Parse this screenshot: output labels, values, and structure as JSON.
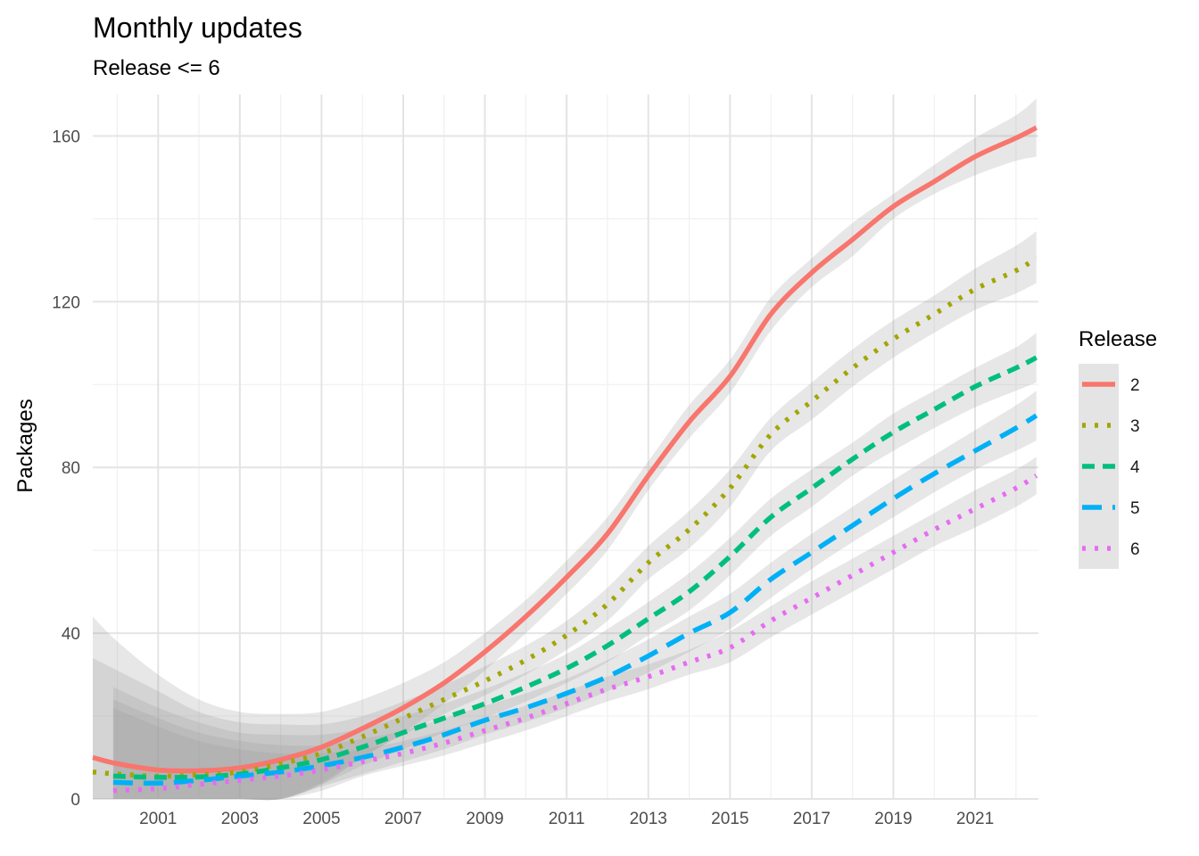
{
  "chart_data": {
    "type": "line",
    "title": "Monthly updates",
    "subtitle": "Release <= 6",
    "xlabel": "",
    "ylabel": "Packages",
    "xlim": [
      1999.4,
      2022.55
    ],
    "ylim": [
      0,
      170
    ],
    "x_ticks": [
      2001,
      2003,
      2005,
      2007,
      2009,
      2011,
      2013,
      2015,
      2017,
      2019,
      2021
    ],
    "y_ticks": [
      0,
      40,
      80,
      120,
      160
    ],
    "grid": true,
    "legend": {
      "title": "Release",
      "position": "right"
    },
    "series": [
      {
        "name": "2",
        "color": "#F8766D",
        "dash": "solid",
        "x": [
          1999.4,
          2000,
          2001,
          2002,
          2003,
          2004,
          2005,
          2006,
          2007,
          2008,
          2009,
          2010,
          2011,
          2012,
          2013,
          2014,
          2015,
          2016,
          2017,
          2018,
          2019,
          2020,
          2021,
          2022,
          2022.5
        ],
        "y": [
          10,
          8.5,
          7,
          6.8,
          7.5,
          9.5,
          12.5,
          17,
          22,
          28,
          35.5,
          44,
          53.5,
          64,
          78,
          91,
          102,
          117,
          127,
          135,
          143,
          149,
          155,
          159.5,
          162
        ],
        "band_upper": [
          44,
          38,
          30,
          24,
          21,
          20.5,
          21,
          24,
          28,
          33,
          40,
          48,
          57.5,
          68,
          81.5,
          95,
          106,
          121,
          130.5,
          139,
          146,
          153,
          159.5,
          165,
          169
        ],
        "band_lower": [
          0,
          0,
          0,
          0,
          0,
          0,
          4,
          10,
          16,
          23,
          31,
          40,
          49.5,
          60,
          74.5,
          87,
          98,
          113,
          123.5,
          131,
          140,
          146,
          150.5,
          154,
          155
        ]
      },
      {
        "name": "3",
        "color": "#A3A500",
        "dash": "dotted",
        "x": [
          1999.4,
          2000,
          2001,
          2002,
          2003,
          2004,
          2005,
          2006,
          2007,
          2008,
          2009,
          2010,
          2011,
          2012,
          2013,
          2014,
          2015,
          2016,
          2017,
          2018,
          2019,
          2020,
          2021,
          2022,
          2022.5
        ],
        "y": [
          6.5,
          6,
          5.5,
          5.8,
          6.5,
          8.5,
          11,
          15,
          19.5,
          24,
          28.5,
          33.5,
          39.5,
          47,
          57,
          65,
          75,
          88,
          96,
          104,
          111,
          117,
          123,
          127.5,
          130.5
        ],
        "band_upper": [
          34,
          31,
          26,
          21,
          18.5,
          18,
          18,
          20,
          23.5,
          27.5,
          32,
          37,
          43,
          51,
          61,
          69.5,
          79.5,
          92,
          100.5,
          108.5,
          115.5,
          121.5,
          128,
          133.5,
          137
        ],
        "band_lower": [
          0,
          0,
          0,
          0,
          0,
          0,
          3.5,
          10,
          15.5,
          20.5,
          25,
          30,
          36,
          43,
          53,
          60.5,
          70.5,
          84,
          91.5,
          99.5,
          106.5,
          112.5,
          118,
          122,
          124.5
        ]
      },
      {
        "name": "4",
        "color": "#00BF7D",
        "dash": "dashed",
        "x": [
          1999.9,
          2001,
          2002,
          2003,
          2004,
          2005,
          2006,
          2007,
          2008,
          2009,
          2010,
          2011,
          2012,
          2013,
          2014,
          2015,
          2016,
          2017,
          2018,
          2019,
          2020,
          2021,
          2022,
          2022.5
        ],
        "y": [
          5.5,
          5.2,
          5.3,
          6,
          7.5,
          9.5,
          12.5,
          16,
          19.5,
          23,
          27,
          31.5,
          37,
          43.5,
          50,
          58.5,
          68,
          75,
          82,
          88.5,
          94,
          99.5,
          104,
          106.5
        ],
        "band_upper": [
          27,
          22,
          18.5,
          16,
          15.5,
          15.5,
          17,
          20,
          23,
          26.5,
          30.5,
          35,
          41,
          47.5,
          54.5,
          63,
          72.5,
          79.5,
          86,
          93,
          98.5,
          104,
          109,
          112.5
        ],
        "band_lower": [
          0,
          0,
          0,
          0,
          0,
          3.5,
          8,
          12,
          16,
          19.5,
          23.5,
          28,
          33,
          39.5,
          45.5,
          54,
          63.5,
          70.5,
          78,
          84,
          89.5,
          94.5,
          98.5,
          100.5
        ]
      },
      {
        "name": "5",
        "color": "#00B0F6",
        "dash": "longdash",
        "x": [
          1999.9,
          2001,
          2002,
          2003,
          2004,
          2005,
          2006,
          2007,
          2008,
          2009,
          2010,
          2011,
          2012,
          2013,
          2014,
          2015,
          2016,
          2017,
          2018,
          2019,
          2020,
          2021,
          2022,
          2022.5
        ],
        "y": [
          4,
          3.8,
          4.5,
          5.5,
          6.5,
          8,
          10,
          12.5,
          15.5,
          19,
          22,
          25.5,
          29.5,
          34.5,
          40,
          45,
          53,
          59.5,
          66,
          72.5,
          78.5,
          84,
          89.5,
          92.5
        ],
        "band_upper": [
          24,
          19.5,
          16,
          14,
          13,
          13,
          14.5,
          16.5,
          19.5,
          22.5,
          25.5,
          29,
          33.5,
          38.5,
          44,
          49.5,
          57,
          64,
          70.5,
          77,
          83,
          89,
          95,
          98.5
        ],
        "band_lower": [
          0,
          0,
          0,
          0,
          0,
          3,
          6,
          9,
          12,
          15.5,
          18.5,
          22,
          26,
          30.5,
          35.5,
          41,
          48.5,
          55.5,
          62,
          68,
          74,
          79.5,
          84,
          86.5
        ]
      },
      {
        "name": "6",
        "color": "#E76BF3",
        "dash": "dotted",
        "x": [
          1999.9,
          2001,
          2002,
          2003,
          2004,
          2005,
          2006,
          2007,
          2008,
          2009,
          2010,
          2011,
          2012,
          2013,
          2014,
          2015,
          2016,
          2017,
          2018,
          2019,
          2020,
          2021,
          2022,
          2022.5
        ],
        "y": [
          2,
          2.5,
          3.5,
          4.5,
          5.5,
          7,
          9,
          11,
          13.5,
          16.5,
          19.5,
          23,
          26.5,
          29.5,
          33,
          36.5,
          43,
          48.5,
          54,
          59.5,
          65,
          70,
          75,
          78
        ],
        "band_upper": [
          22,
          17.5,
          14,
          12,
          11,
          11,
          12,
          14,
          16.5,
          19.5,
          22.5,
          26,
          29.5,
          32.5,
          36,
          40.5,
          46.5,
          52.5,
          58,
          63.5,
          69,
          74.5,
          79.5,
          82.5
        ],
        "band_lower": [
          0,
          0,
          0,
          0,
          0,
          2,
          5.5,
          8,
          10.5,
          13.5,
          16.5,
          20,
          23.5,
          26.5,
          30,
          33,
          39,
          44.5,
          50,
          55.5,
          61,
          65.5,
          70.5,
          73.5
        ]
      }
    ]
  }
}
